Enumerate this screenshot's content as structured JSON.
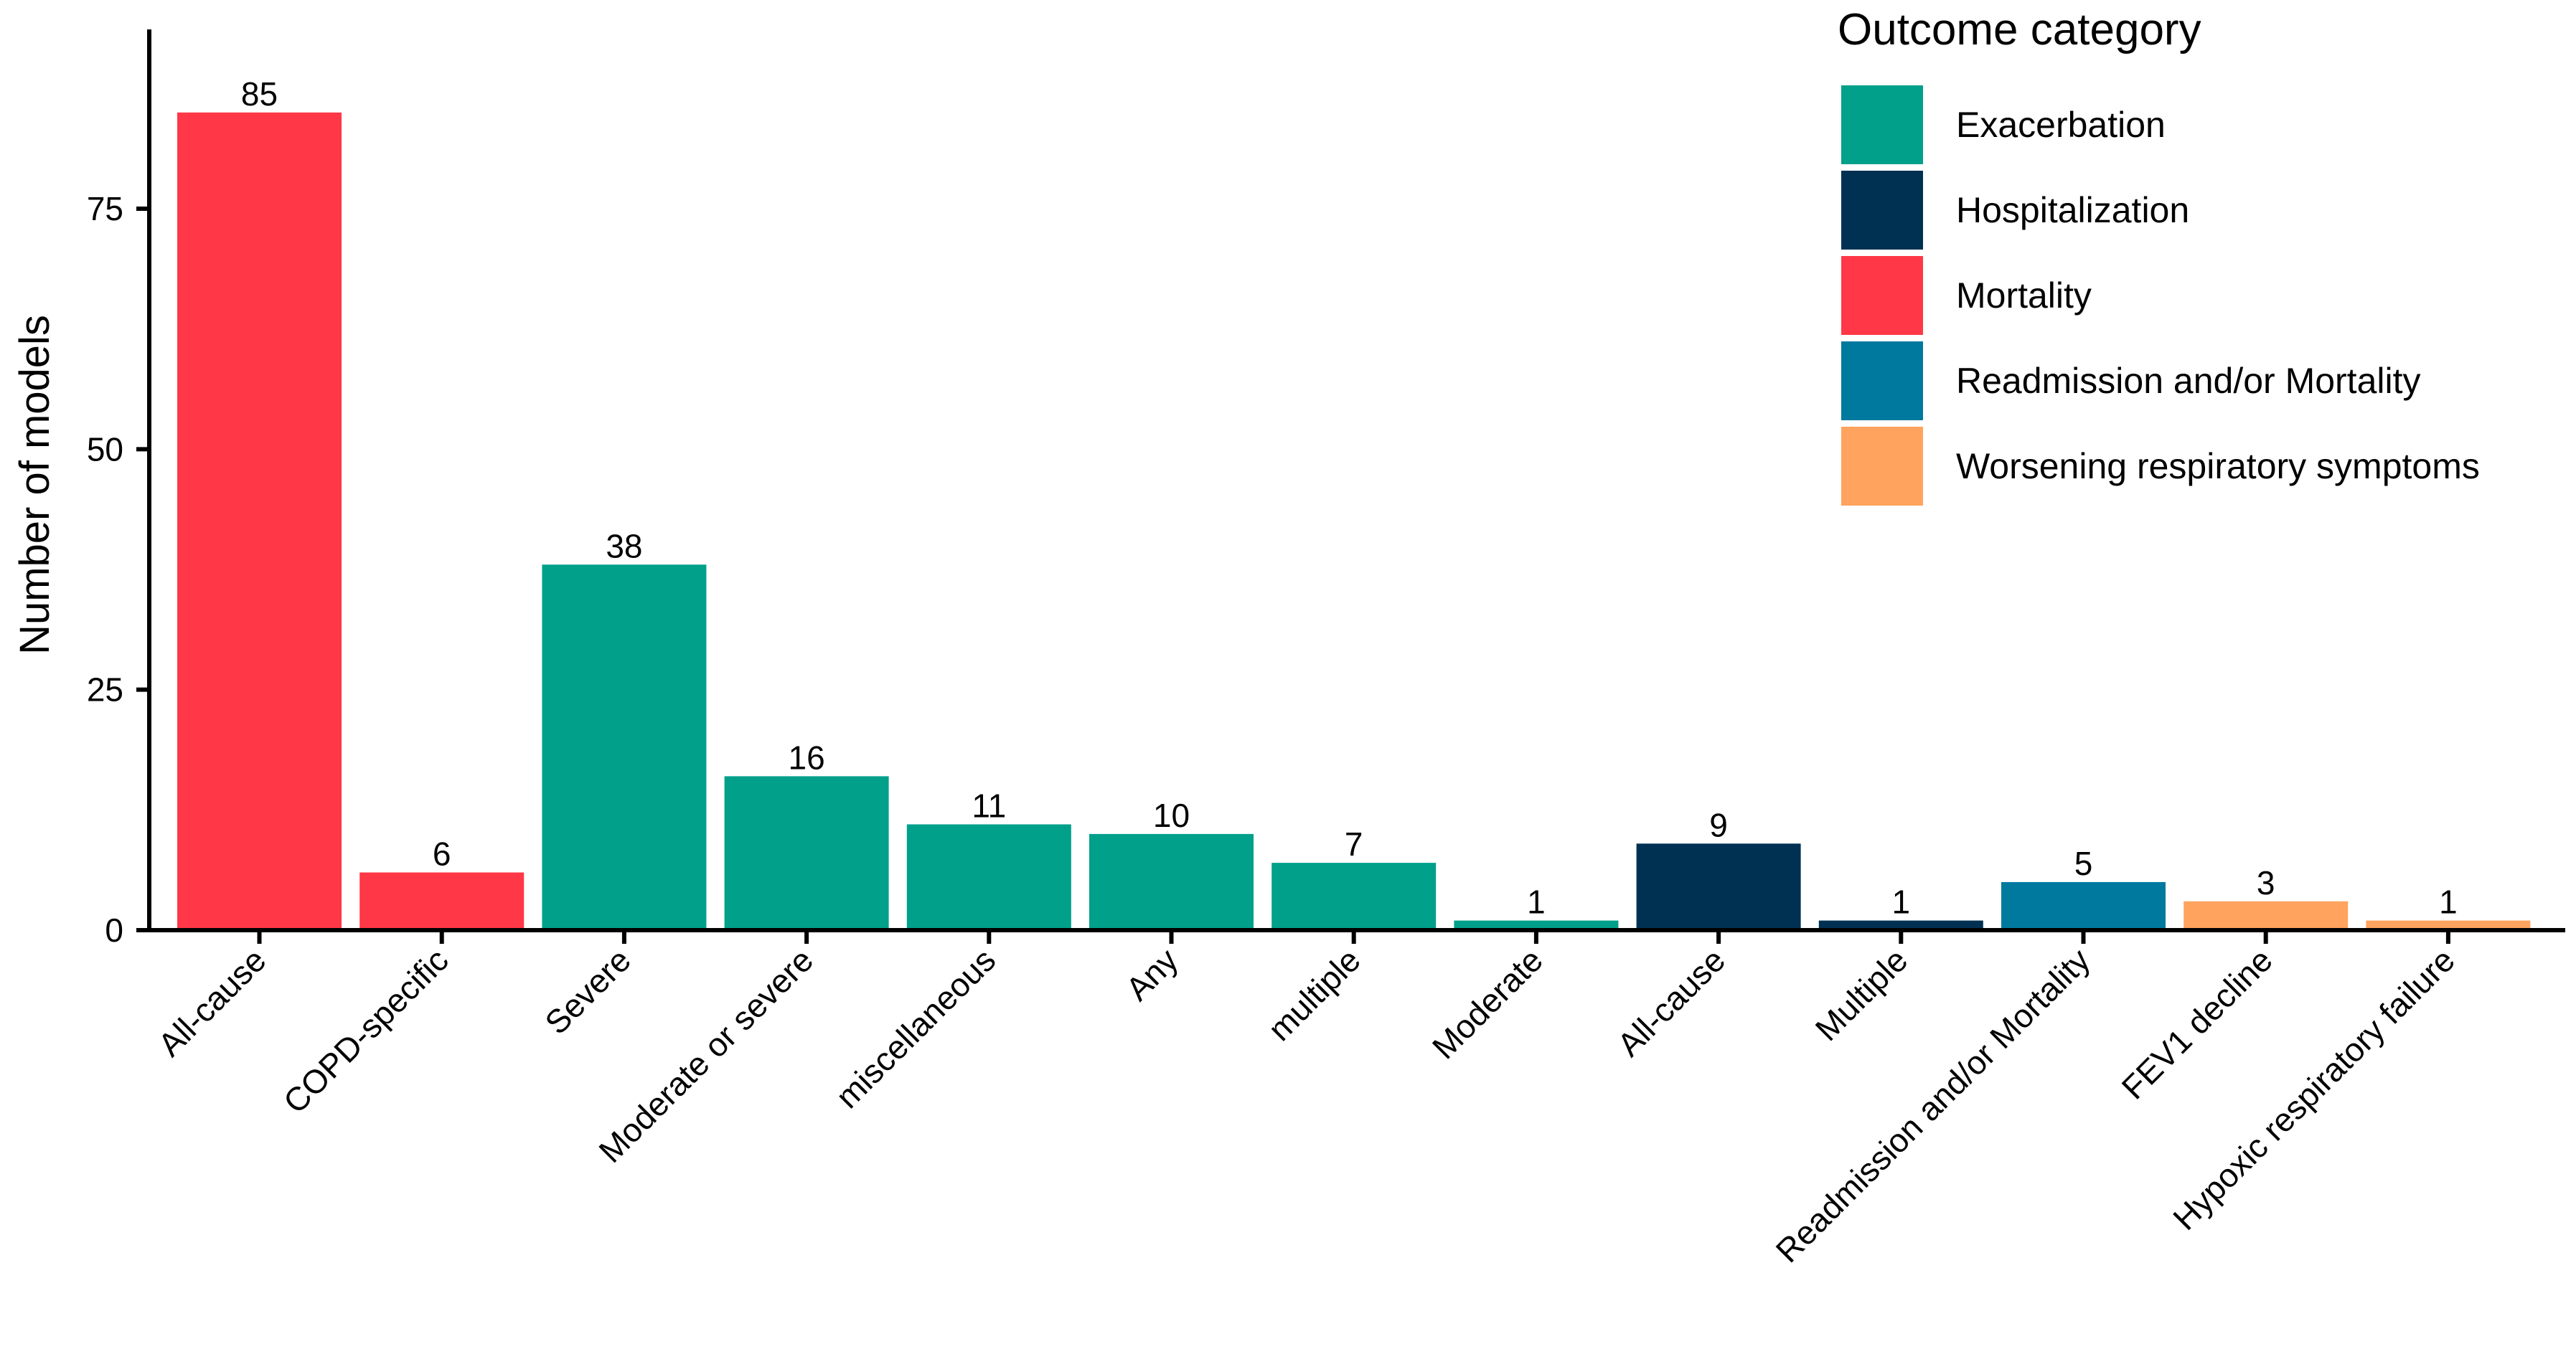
{
  "chart_data": {
    "type": "bar",
    "title": "",
    "xlabel": "",
    "ylabel": "Number of models",
    "ylim": [
      0,
      92
    ],
    "yticks": [
      0,
      25,
      50,
      75
    ],
    "grid": false,
    "legend": {
      "title": "Outcome category",
      "placement": "top-right",
      "entries": [
        {
          "name": "Exacerbation",
          "color": "#00A08A"
        },
        {
          "name": "Hospitalization",
          "color": "#003152"
        },
        {
          "name": "Mortality",
          "color": "#FF3746"
        },
        {
          "name": "Readmission and/or Mortality",
          "color": "#00799E"
        },
        {
          "name": "Worsening respiratory symptoms",
          "color": "#FFA35E"
        }
      ]
    },
    "bars": [
      {
        "category": "All-cause",
        "value": 85,
        "group": "Mortality"
      },
      {
        "category": "COPD-specific",
        "value": 6,
        "group": "Mortality"
      },
      {
        "category": "Severe",
        "value": 38,
        "group": "Exacerbation"
      },
      {
        "category": "Moderate or severe",
        "value": 16,
        "group": "Exacerbation"
      },
      {
        "category": "miscellaneous",
        "value": 11,
        "group": "Exacerbation"
      },
      {
        "category": "Any",
        "value": 10,
        "group": "Exacerbation"
      },
      {
        "category": "multiple",
        "value": 7,
        "group": "Exacerbation"
      },
      {
        "category": "Moderate",
        "value": 1,
        "group": "Exacerbation"
      },
      {
        "category": "All-cause",
        "value": 9,
        "group": "Hospitalization"
      },
      {
        "category": "Multiple",
        "value": 1,
        "group": "Hospitalization"
      },
      {
        "category": "Readmission and/or Mortality",
        "value": 5,
        "group": "Readmission and/or Mortality"
      },
      {
        "category": "FEV1 decline",
        "value": 3,
        "group": "Worsening respiratory symptoms"
      },
      {
        "category": "Hypoxic respiratory failure",
        "value": 1,
        "group": "Worsening respiratory symptoms"
      }
    ]
  }
}
